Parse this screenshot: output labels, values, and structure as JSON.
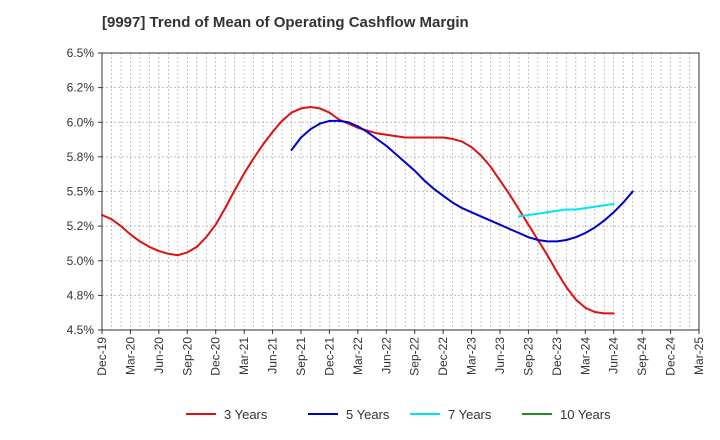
{
  "chart_data": {
    "type": "line",
    "title": "[9997]  Trend of Mean of Operating Cashflow Margin",
    "xlabel": "",
    "ylabel": "",
    "ylim": [
      4.5,
      6.5
    ],
    "y_ticks": [
      4.5,
      4.75,
      5.0,
      5.25,
      5.5,
      5.75,
      6.0,
      6.25,
      6.5
    ],
    "y_tick_labels": [
      "4.5%",
      "4.8%",
      "5.0%",
      "5.2%",
      "5.5%",
      "5.8%",
      "6.0%",
      "6.2%",
      "6.5%"
    ],
    "x_tick_labels": [
      "Dec-19",
      "Mar-20",
      "Jun-20",
      "Sep-20",
      "Dec-20",
      "Mar-21",
      "Jun-21",
      "Sep-21",
      "Dec-21",
      "Mar-22",
      "Jun-22",
      "Sep-22",
      "Dec-22",
      "Mar-23",
      "Jun-23",
      "Sep-23",
      "Dec-23",
      "Mar-24",
      "Jun-24",
      "Sep-24",
      "Dec-24",
      "Mar-25"
    ],
    "grid": true,
    "legend_position": "bottom",
    "series": [
      {
        "name": "3 Years",
        "color": "#dd1111",
        "start_index": 0,
        "values": [
          5.33,
          5.3,
          5.25,
          5.19,
          5.14,
          5.1,
          5.07,
          5.05,
          5.04,
          5.06,
          5.1,
          5.17,
          5.26,
          5.38,
          5.51,
          5.63,
          5.74,
          5.84,
          5.93,
          6.01,
          6.07,
          6.1,
          6.11,
          6.1,
          6.07,
          6.02,
          5.99,
          5.96,
          5.94,
          5.92,
          5.91,
          5.9,
          5.89,
          5.89,
          5.89,
          5.89,
          5.89,
          5.88,
          5.86,
          5.82,
          5.76,
          5.68,
          5.58,
          5.48,
          5.37,
          5.26,
          5.15,
          5.04,
          4.92,
          4.81,
          4.72,
          4.66,
          4.63,
          4.62,
          4.62
        ]
      },
      {
        "name": "5 Years",
        "color": "#0000cc",
        "start_index": 20,
        "values": [
          5.8,
          5.89,
          5.95,
          5.99,
          6.01,
          6.01,
          6.0,
          5.97,
          5.93,
          5.88,
          5.83,
          5.77,
          5.71,
          5.65,
          5.58,
          5.52,
          5.47,
          5.42,
          5.38,
          5.35,
          5.32,
          5.29,
          5.26,
          5.23,
          5.2,
          5.17,
          5.15,
          5.14,
          5.14,
          5.15,
          5.17,
          5.2,
          5.24,
          5.29,
          5.35,
          5.42,
          5.5
        ]
      },
      {
        "name": "7 Years",
        "color": "#00e5ee",
        "start_index": 44,
        "values": [
          5.32,
          5.33,
          5.34,
          5.35,
          5.36,
          5.37,
          5.37,
          5.38,
          5.39,
          5.4,
          5.41
        ]
      },
      {
        "name": "10 Years",
        "color": "#228b22",
        "start_index": 0,
        "values": []
      }
    ]
  }
}
